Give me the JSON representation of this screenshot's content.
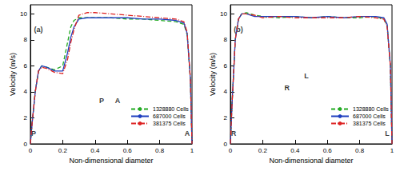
{
  "chart_data": [
    {
      "type": "line",
      "title": "(a)",
      "xlabel": "Non-dimensional diameter",
      "ylabel": "Velocity (m/s)",
      "xlim": [
        0,
        1
      ],
      "xticks": [
        0,
        0.2,
        0.4,
        0.6,
        0.8,
        1
      ],
      "ylim": [
        0,
        10.7
      ],
      "yticks": [
        0,
        2,
        4,
        6,
        8,
        10
      ],
      "grid": false,
      "legend": "lower right",
      "x": [
        0,
        0.01,
        0.03,
        0.05,
        0.07,
        0.1,
        0.15,
        0.2,
        0.23,
        0.25,
        0.27,
        0.3,
        0.35,
        0.4,
        0.5,
        0.6,
        0.7,
        0.8,
        0.9,
        0.95,
        0.97,
        0.99,
        1
      ],
      "series": [
        {
          "name": "1328880 Cells",
          "color": "#22aa22",
          "line_style": "dashed",
          "values": [
            0,
            1.5,
            4.0,
            5.6,
            6.0,
            5.9,
            5.7,
            6.0,
            7.8,
            9.0,
            9.5,
            9.7,
            9.7,
            9.7,
            9.7,
            9.6,
            9.6,
            9.5,
            9.4,
            9.2,
            8.4,
            5.0,
            0
          ]
        },
        {
          "name": "687000 Cells",
          "color": "#1f3fbf",
          "line_style": "solid",
          "values": [
            0,
            1.5,
            4.0,
            5.6,
            6.0,
            5.9,
            5.6,
            5.6,
            7.0,
            8.2,
            9.0,
            9.6,
            9.7,
            9.7,
            9.7,
            9.7,
            9.6,
            9.6,
            9.5,
            9.3,
            8.5,
            5.0,
            0
          ]
        },
        {
          "name": "381375 Cells",
          "color": "#dd2222",
          "line_style": "dashdot",
          "values": [
            0,
            1.5,
            4.0,
            5.6,
            5.9,
            5.8,
            5.5,
            5.4,
            6.5,
            7.8,
            8.8,
            9.9,
            10.1,
            10.1,
            10.0,
            9.9,
            9.8,
            9.7,
            9.6,
            9.4,
            8.6,
            5.0,
            0
          ]
        }
      ],
      "annotations": [
        {
          "text": "(a)",
          "x": 0.05,
          "y": 8.8
        },
        {
          "text": "P",
          "x": 0.02,
          "y": 0.8
        },
        {
          "text": "A",
          "x": 0.97,
          "y": 0.8
        },
        {
          "text": "P",
          "x": 0.44,
          "y": 3.3
        },
        {
          "text": "A",
          "x": 0.54,
          "y": 3.3
        }
      ]
    },
    {
      "type": "line",
      "title": "(b)",
      "xlabel": "Non-dimensional diameter",
      "ylabel": "Velocity (m/s)",
      "xlim": [
        0,
        1
      ],
      "xticks": [
        0,
        0.2,
        0.4,
        0.6,
        0.8,
        1
      ],
      "ylim": [
        0,
        10.7
      ],
      "yticks": [
        0,
        2,
        4,
        6,
        8,
        10
      ],
      "grid": false,
      "legend": "lower right",
      "x": [
        0,
        0.01,
        0.03,
        0.05,
        0.07,
        0.1,
        0.15,
        0.2,
        0.3,
        0.4,
        0.5,
        0.6,
        0.7,
        0.8,
        0.9,
        0.95,
        0.97,
        0.99,
        1
      ],
      "series": [
        {
          "name": "1328880 Cells",
          "color": "#22aa22",
          "line_style": "dashed",
          "values": [
            0,
            3,
            8.0,
            9.6,
            10.0,
            10.1,
            9.9,
            9.8,
            9.7,
            9.8,
            9.7,
            9.8,
            9.7,
            9.7,
            9.8,
            9.6,
            9.1,
            6,
            0
          ]
        },
        {
          "name": "687000 Cells",
          "color": "#1f3fbf",
          "line_style": "solid",
          "values": [
            0,
            3,
            8.0,
            9.6,
            10.0,
            10.0,
            9.8,
            9.8,
            9.8,
            9.8,
            9.7,
            9.8,
            9.7,
            9.8,
            9.8,
            9.7,
            9.2,
            6,
            0
          ]
        },
        {
          "name": "381375 Cells",
          "color": "#dd2222",
          "line_style": "dashdot",
          "values": [
            0,
            3,
            8.0,
            9.6,
            10.0,
            10.0,
            9.9,
            9.7,
            9.8,
            9.7,
            9.7,
            9.7,
            9.7,
            9.8,
            9.7,
            9.6,
            9.0,
            6,
            0
          ]
        }
      ],
      "annotations": [
        {
          "text": "(b)",
          "x": 0.05,
          "y": 8.8
        },
        {
          "text": "R",
          "x": 0.02,
          "y": 0.8
        },
        {
          "text": "L",
          "x": 0.97,
          "y": 0.8
        },
        {
          "text": "R",
          "x": 0.35,
          "y": 4.3
        },
        {
          "text": "L",
          "x": 0.47,
          "y": 5.2
        }
      ]
    }
  ]
}
